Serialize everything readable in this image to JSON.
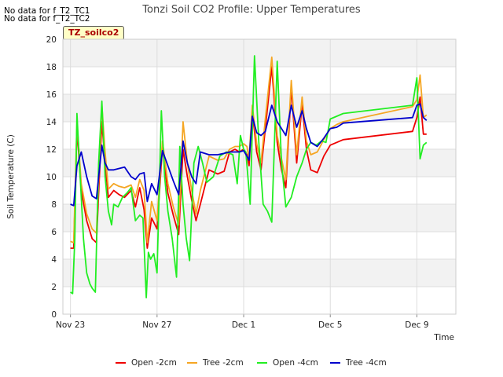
{
  "notes": [
    "No data for f_T2_TC1",
    "No data for f_T2_TC2"
  ],
  "badge": "TZ_soilco2",
  "chart_data": {
    "type": "line",
    "title": "Tonzi Soil CO2 Profile: Upper Temperatures",
    "xlabel": "Time",
    "ylabel": "Soil Temperature (C)",
    "ylim": [
      0,
      20
    ],
    "xlim": [
      -0.35,
      17.8
    ],
    "yticks": [
      0,
      2,
      4,
      6,
      8,
      10,
      12,
      14,
      16,
      18,
      20
    ],
    "xticks": [
      {
        "label": "Nov 23",
        "value": 0
      },
      {
        "label": "Nov 27",
        "value": 4
      },
      {
        "label": "Dec 1",
        "value": 8
      },
      {
        "label": "Dec 5",
        "value": 12
      },
      {
        "label": "Dec 9",
        "value": 16
      }
    ],
    "grid": true,
    "legend_position": "bottom",
    "series": [
      {
        "name": "Open -2cm",
        "color": "#ee0000",
        "x": [
          0.0,
          0.15,
          0.3,
          0.5,
          0.75,
          1.0,
          1.2,
          1.45,
          1.6,
          1.75,
          2.0,
          2.25,
          2.5,
          2.8,
          3.0,
          3.2,
          3.4,
          3.55,
          3.75,
          4.0,
          4.25,
          4.5,
          4.75,
          5.0,
          5.2,
          5.4,
          5.6,
          5.8,
          6.0,
          6.4,
          6.8,
          7.1,
          7.35,
          7.6,
          7.8,
          8.0,
          8.15,
          8.25,
          8.4,
          8.6,
          8.8,
          9.0,
          9.3,
          9.55,
          9.75,
          9.95,
          10.2,
          10.45,
          10.7,
          10.9,
          11.1,
          11.4,
          11.7,
          12.0,
          12.3,
          12.6,
          15.8,
          16.0,
          16.15,
          16.3,
          16.45
        ],
        "y": [
          4.8,
          4.8,
          13.5,
          9.0,
          6.8,
          5.5,
          5.2,
          14.0,
          11.0,
          8.5,
          9.0,
          8.7,
          8.5,
          9.0,
          7.8,
          9.2,
          7.6,
          4.8,
          7.0,
          6.2,
          12.2,
          8.8,
          7.2,
          5.8,
          12.0,
          10.0,
          8.3,
          6.8,
          8.0,
          10.5,
          10.2,
          10.4,
          11.8,
          12.0,
          11.8,
          12.0,
          11.6,
          10.8,
          14.8,
          11.8,
          10.5,
          13.5,
          18.0,
          12.5,
          10.5,
          9.2,
          16.5,
          11.0,
          15.3,
          12.0,
          10.5,
          10.3,
          11.5,
          12.3,
          12.5,
          12.7,
          13.3,
          14.3,
          15.8,
          13.1,
          13.1
        ]
      },
      {
        "name": "Tree -2cm",
        "color": "#f5a623",
        "x": [
          0.0,
          0.15,
          0.3,
          0.5,
          0.75,
          1.0,
          1.2,
          1.45,
          1.6,
          1.75,
          2.0,
          2.25,
          2.5,
          2.8,
          3.0,
          3.2,
          3.4,
          3.55,
          3.75,
          4.0,
          4.25,
          4.5,
          4.75,
          5.0,
          5.2,
          5.4,
          5.6,
          5.8,
          6.0,
          6.4,
          6.8,
          7.1,
          7.35,
          7.6,
          7.8,
          8.0,
          8.15,
          8.25,
          8.4,
          8.6,
          8.8,
          9.0,
          9.3,
          9.55,
          9.75,
          9.95,
          10.2,
          10.45,
          10.7,
          10.9,
          11.1,
          11.4,
          11.7,
          12.0,
          12.3,
          12.6,
          15.8,
          16.0,
          16.15,
          16.3,
          16.45
        ],
        "y": [
          5.3,
          5.2,
          14.0,
          9.5,
          7.3,
          6.2,
          5.9,
          15.2,
          11.8,
          9.1,
          9.5,
          9.3,
          9.2,
          9.4,
          8.5,
          9.8,
          9.0,
          5.2,
          8.2,
          6.8,
          12.6,
          9.5,
          7.8,
          6.5,
          14.0,
          11.0,
          9.0,
          7.3,
          9.0,
          11.5,
          11.2,
          11.3,
          12.0,
          12.2,
          12.2,
          12.4,
          12.2,
          11.3,
          15.2,
          12.4,
          11.0,
          14.2,
          18.7,
          13.0,
          11.3,
          9.8,
          17.0,
          11.6,
          15.8,
          12.6,
          11.6,
          11.8,
          12.7,
          13.5,
          13.8,
          14.0,
          15.1,
          15.6,
          17.4,
          14.3,
          14.5
        ]
      },
      {
        "name": "Open -4cm",
        "color": "#22ee22",
        "x": [
          0.0,
          0.1,
          0.2,
          0.3,
          0.45,
          0.6,
          0.75,
          0.9,
          1.0,
          1.15,
          1.3,
          1.45,
          1.6,
          1.75,
          1.9,
          2.0,
          2.2,
          2.4,
          2.6,
          2.8,
          3.0,
          3.2,
          3.35,
          3.5,
          3.6,
          3.7,
          3.85,
          4.0,
          4.2,
          4.35,
          4.5,
          4.7,
          4.9,
          5.05,
          5.2,
          5.35,
          5.5,
          5.7,
          5.9,
          6.1,
          6.3,
          6.6,
          6.9,
          7.2,
          7.5,
          7.7,
          7.85,
          8.0,
          8.1,
          8.3,
          8.5,
          8.7,
          8.9,
          9.1,
          9.3,
          9.55,
          9.75,
          9.95,
          10.2,
          10.45,
          10.7,
          10.9,
          11.1,
          11.35,
          11.6,
          11.8,
          12.0,
          12.3,
          12.6,
          15.8,
          16.0,
          16.15,
          16.3,
          16.45
        ],
        "y": [
          1.6,
          1.5,
          5.5,
          14.6,
          10.0,
          5.5,
          3.0,
          2.2,
          1.9,
          1.6,
          11.0,
          15.5,
          10.0,
          7.5,
          6.5,
          8.0,
          7.8,
          8.5,
          8.8,
          9.2,
          6.8,
          7.2,
          7.0,
          1.2,
          4.5,
          4.0,
          4.4,
          3.0,
          14.8,
          10.0,
          7.5,
          5.5,
          2.7,
          12.2,
          8.0,
          5.5,
          3.9,
          11.0,
          12.2,
          11.0,
          9.6,
          10.0,
          11.5,
          11.8,
          11.6,
          9.5,
          13.0,
          12.0,
          11.8,
          8.0,
          18.8,
          12.5,
          8.0,
          7.5,
          6.7,
          18.4,
          11.0,
          7.8,
          8.5,
          10.0,
          11.0,
          12.0,
          12.5,
          12.3,
          12.6,
          12.5,
          14.2,
          14.4,
          14.6,
          15.2,
          17.2,
          11.3,
          12.3,
          12.5
        ]
      },
      {
        "name": "Tree -4cm",
        "color": "#0000cc",
        "x": [
          0.0,
          0.15,
          0.3,
          0.5,
          0.75,
          1.0,
          1.2,
          1.45,
          1.6,
          1.75,
          2.0,
          2.25,
          2.5,
          2.8,
          3.0,
          3.2,
          3.4,
          3.55,
          3.75,
          4.0,
          4.25,
          4.5,
          4.75,
          5.0,
          5.2,
          5.4,
          5.6,
          5.8,
          6.0,
          6.4,
          6.8,
          7.1,
          7.35,
          7.6,
          7.8,
          8.0,
          8.15,
          8.25,
          8.4,
          8.6,
          8.8,
          9.0,
          9.3,
          9.55,
          9.75,
          9.95,
          10.2,
          10.45,
          10.7,
          10.9,
          11.1,
          11.4,
          11.7,
          12.0,
          12.3,
          12.6,
          15.8,
          16.0,
          16.15,
          16.3,
          16.45
        ],
        "y": [
          8.0,
          7.9,
          10.8,
          11.8,
          10.0,
          8.6,
          8.4,
          12.3,
          11.0,
          10.5,
          10.5,
          10.6,
          10.7,
          10.0,
          9.8,
          10.2,
          10.3,
          8.2,
          9.5,
          8.7,
          11.9,
          10.8,
          9.7,
          8.7,
          12.6,
          11.0,
          10.0,
          9.5,
          11.8,
          11.6,
          11.6,
          11.7,
          11.8,
          11.8,
          11.8,
          11.9,
          11.5,
          11.2,
          14.4,
          13.2,
          13.0,
          13.3,
          15.2,
          14.0,
          13.5,
          13.0,
          15.2,
          13.6,
          14.8,
          13.5,
          12.5,
          12.2,
          12.8,
          13.5,
          13.6,
          13.9,
          14.3,
          15.2,
          15.3,
          14.3,
          14.1
        ]
      }
    ]
  }
}
